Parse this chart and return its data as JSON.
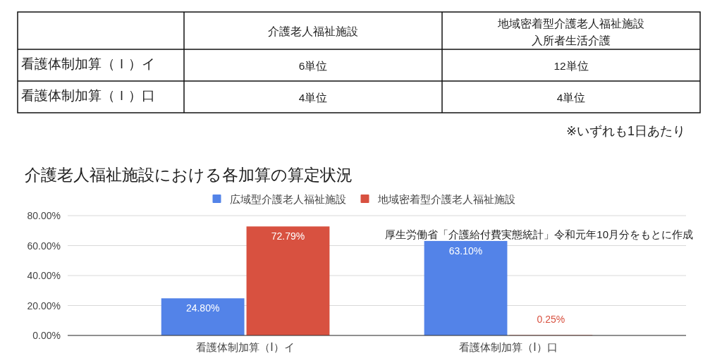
{
  "chart_data": [
    {
      "type": "heatmap",
      "categories": [
        "介護老人福祉施設",
        "地域密着型介護老人福祉施設入所者生活介護"
      ],
      "y_categories": [
        "看護体制加算（Ｉ）イ",
        "看護体制加算（Ｉ）口"
      ],
      "cells": [
        [
          6,
          12
        ],
        [
          4,
          4
        ]
      ],
      "cell_labels": [
        [
          "6単位",
          "12単位"
        ],
        [
          "4単位",
          "4単位"
        ]
      ],
      "annotations": [
        "※いずれも1日あたり"
      ]
    },
    {
      "type": "bar",
      "title": "介護老人福祉施設における各加算の算定状況",
      "categories": [
        "看護体制加算（Ⅰ）イ",
        "看護体制加算（Ⅰ）口"
      ],
      "series": [
        {
          "name": "広域型介護老人福祉施設",
          "color": "#5383e8",
          "values": [
            24.8,
            63.1
          ],
          "value_labels": [
            "24.80%",
            "63.10%"
          ]
        },
        {
          "name": "地域密着型介護老人福祉施設",
          "color": "#d85140",
          "values": [
            72.79,
            0.25
          ],
          "value_labels": [
            "72.79%",
            "0.25%"
          ]
        }
      ],
      "ylim": [
        0,
        80
      ],
      "yticks": [
        {
          "value": 0,
          "label": "0.00%"
        },
        {
          "value": 20,
          "label": "20.00%"
        },
        {
          "value": 40,
          "label": "40.00%"
        },
        {
          "value": 60,
          "label": "60.00%"
        },
        {
          "value": 80,
          "label": "80.00%"
        }
      ],
      "grid": "y",
      "legend": "top",
      "annotations": [
        "厚生労働省「介護給付費実態統計」令和元年10月分をもとに作成"
      ]
    }
  ]
}
